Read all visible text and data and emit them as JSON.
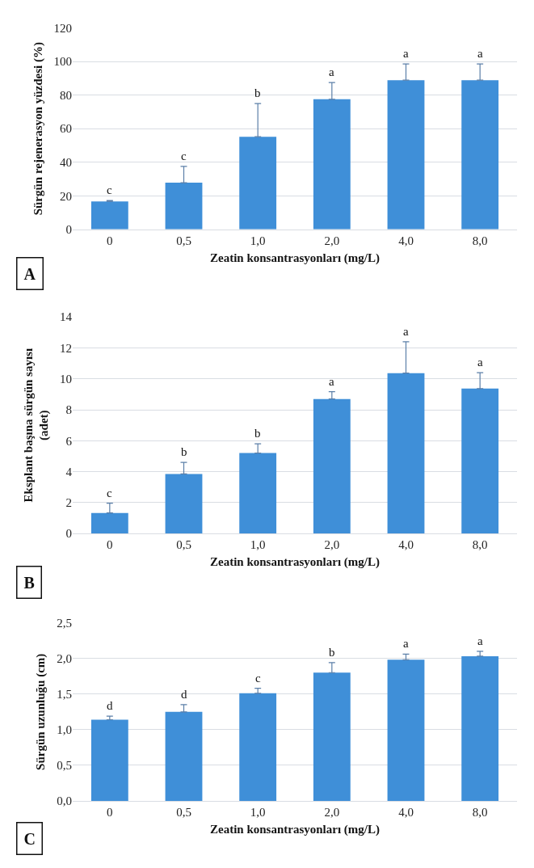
{
  "chart_data": [
    {
      "type": "bar",
      "xlabel": "Zeatin konsantrasyonları (mg/L)",
      "ylabel": "Sürgün rejenerasyon yüzdesi (%)",
      "categories": [
        "0",
        "0,5",
        "1,0",
        "2,0",
        "4,0",
        "8,0"
      ],
      "values": [
        16.7,
        27.8,
        55.2,
        77.5,
        88.9,
        88.9
      ],
      "errors": [
        [
          16.7,
          17.2
        ],
        [
          27.8,
          37.5
        ],
        [
          55.2,
          75.0
        ],
        [
          77.5,
          87.5
        ],
        [
          88.9,
          98.6
        ],
        [
          88.9,
          98.6
        ]
      ],
      "color": "#3f8fd8",
      "ylim": [
        0,
        120
      ],
      "yticks": [
        0,
        20,
        40,
        60,
        80,
        100,
        120
      ],
      "grid": "y",
      "annotations": [
        {
          "text": "c",
          "x": "0",
          "y": 17.2
        },
        {
          "text": "c",
          "x": "0,5",
          "y": 37.5
        },
        {
          "text": "b",
          "x": "1,0",
          "y": 75.0
        },
        {
          "text": "a",
          "x": "2,0",
          "y": 87.5
        },
        {
          "text": "a",
          "x": "4,0",
          "y": 98.6
        },
        {
          "text": "a",
          "x": "8,0",
          "y": 98.6
        },
        "A"
      ]
    },
    {
      "type": "bar",
      "xlabel": "Zeatin konsantrasyonları (mg/L)",
      "ylabel": "Eksplant başına sürgün sayısı\n(adet)",
      "categories": [
        "0",
        "0,5",
        "1,0",
        "2,0",
        "4,0",
        "8,0"
      ],
      "values": [
        1.33,
        3.85,
        5.2,
        8.7,
        10.37,
        9.37
      ],
      "errors": [
        [
          1.33,
          1.96
        ],
        [
          3.85,
          4.6
        ],
        [
          5.2,
          5.8
        ],
        [
          8.7,
          9.17
        ],
        [
          10.37,
          12.4
        ],
        [
          9.37,
          10.4
        ]
      ],
      "color": "#3f8fd8",
      "ylim": [
        0,
        14
      ],
      "yticks": [
        0,
        2,
        4,
        6,
        8,
        10,
        12,
        14
      ],
      "grid": "y",
      "annotations": [
        {
          "text": "c",
          "x": "0",
          "y": 1.96
        },
        {
          "text": "b",
          "x": "0,5",
          "y": 4.6
        },
        {
          "text": "b",
          "x": "1,0",
          "y": 5.8
        },
        {
          "text": "a",
          "x": "2,0",
          "y": 9.17
        },
        {
          "text": "a",
          "x": "4,0",
          "y": 12.4
        },
        {
          "text": "a",
          "x": "8,0",
          "y": 10.4
        },
        "B"
      ]
    },
    {
      "type": "bar",
      "xlabel": "Zeatin konsantrasyonları (mg/L)",
      "ylabel": "Sürgün uzunluğu (cm)",
      "categories": [
        "0",
        "0,5",
        "1,0",
        "2,0",
        "4,0",
        "8,0"
      ],
      "values": [
        1.14,
        1.25,
        1.51,
        1.8,
        1.98,
        2.03
      ],
      "errors": [
        [
          1.14,
          1.19
        ],
        [
          1.25,
          1.35
        ],
        [
          1.51,
          1.58
        ],
        [
          1.8,
          1.94
        ],
        [
          1.98,
          2.06
        ],
        [
          2.03,
          2.1
        ]
      ],
      "color": "#3f8fd8",
      "ylim": [
        0,
        2.5
      ],
      "yticks": [
        {
          "value": 0,
          "label": "0,0"
        },
        {
          "value": 0.5,
          "label": "0,5"
        },
        {
          "value": 1,
          "label": "1,0"
        },
        {
          "value": 1.5,
          "label": "1,5"
        },
        {
          "value": 2,
          "label": "2,0"
        },
        {
          "value": 2.5,
          "label": "2,5"
        }
      ],
      "grid": "y",
      "annotations": [
        {
          "text": "d",
          "x": "0",
          "y": 1.19
        },
        {
          "text": "d",
          "x": "0,5",
          "y": 1.35
        },
        {
          "text": "c",
          "x": "1,0",
          "y": 1.58
        },
        {
          "text": "b",
          "x": "2,0",
          "y": 1.94
        },
        {
          "text": "a",
          "x": "4,0",
          "y": 2.06
        },
        {
          "text": "a",
          "x": "8,0",
          "y": 2.1
        },
        "C"
      ]
    }
  ]
}
